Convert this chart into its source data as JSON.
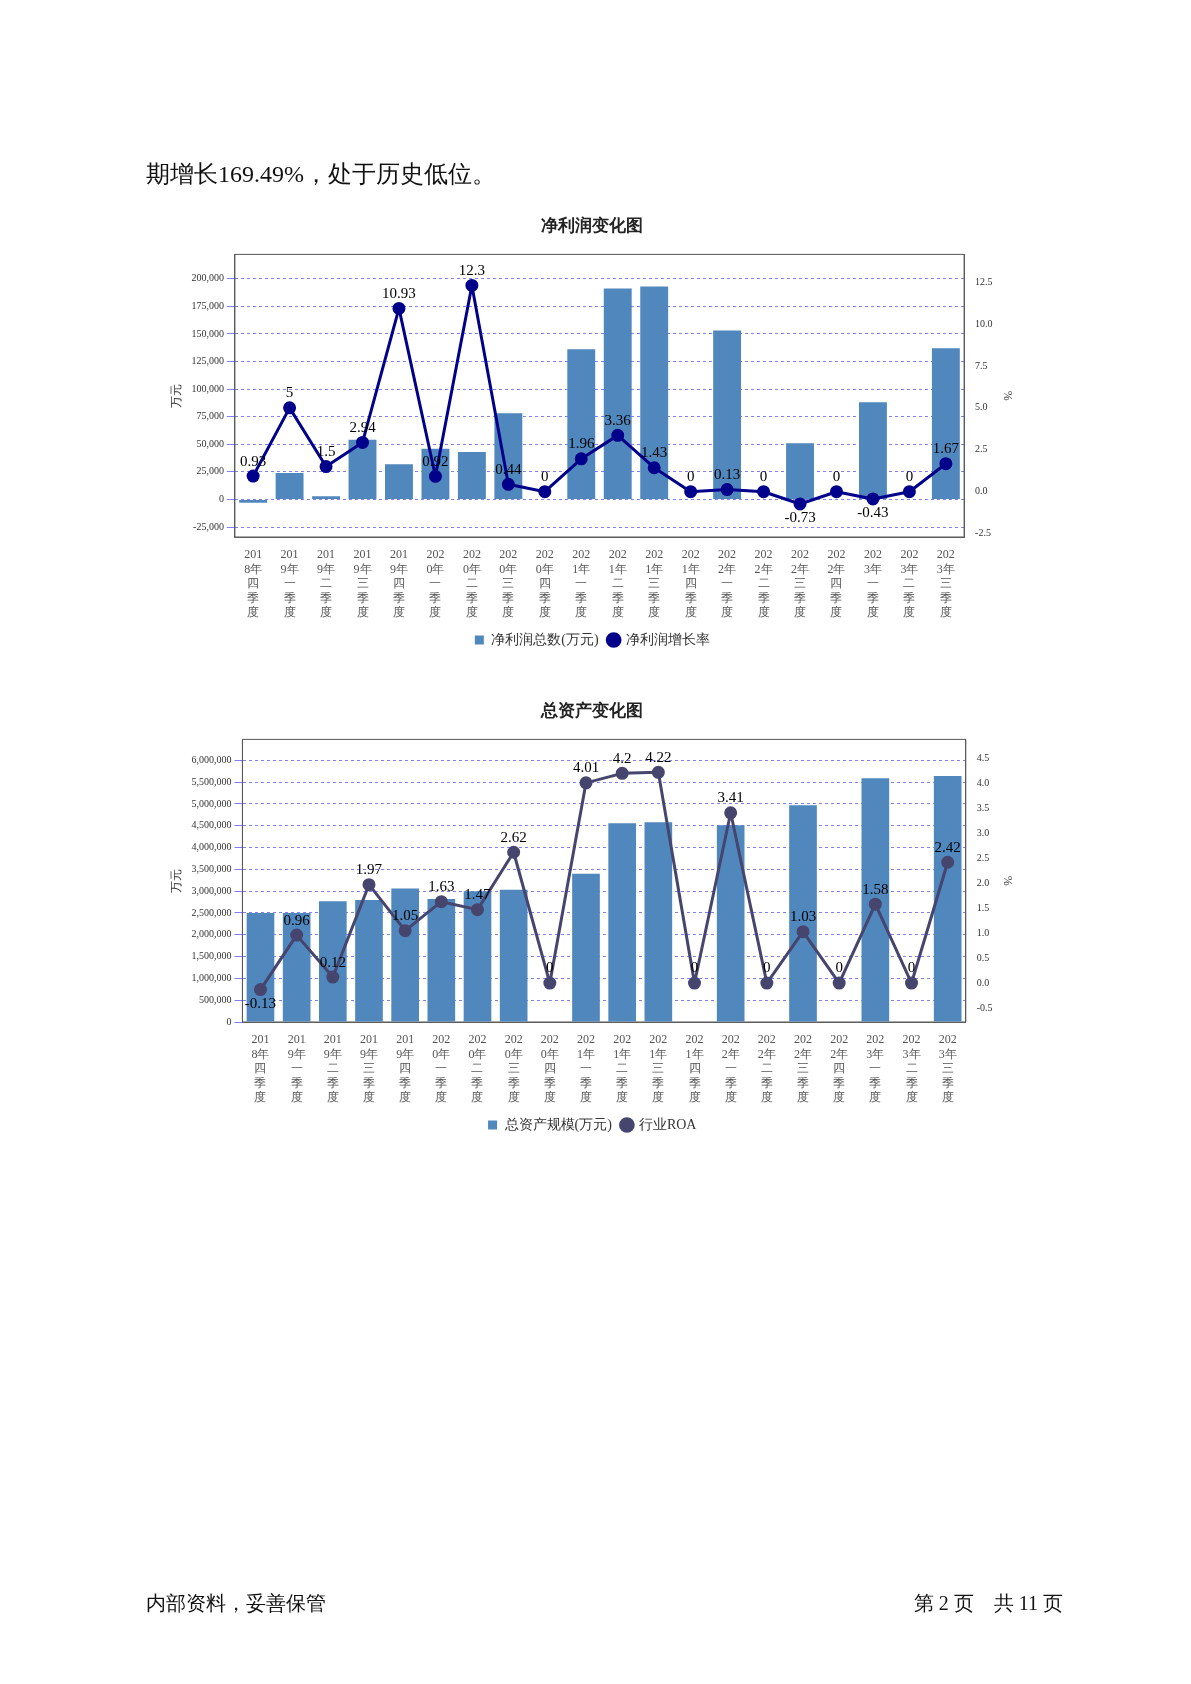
{
  "chart_data": [
    {
      "type": "bar",
      "title": "净利润变化图",
      "ylabel": "万元",
      "y2label": "%",
      "annotations": [
        "期增长169.49%，处于历史低位。"
      ],
      "categories": [
        "2018年四季度",
        "2019年一季度",
        "2019年二季度",
        "2019年三季度",
        "2019年四季度",
        "2020年一季度",
        "2020年二季度",
        "2020年三季度",
        "2020年四季度",
        "2021年一季度",
        "2021年二季度",
        "2021年三季度",
        "2021年四季度",
        "2022年一季度",
        "2022年二季度",
        "2022年三季度",
        "2022年四季度",
        "2023年一季度",
        "2023年二季度",
        "2023年三季度"
      ],
      "series": [
        {
          "name": "净利润总数(万元)",
          "type": "bar",
          "color": "#5087bd",
          "values": [
            -3000,
            24000,
            3000,
            54000,
            32000,
            46000,
            43000,
            78000,
            null,
            136000,
            191000,
            193000,
            null,
            153000,
            null,
            51000,
            null,
            88000,
            null,
            137000
          ]
        },
        {
          "name": "净利润增长率",
          "type": "line",
          "axis": "y2",
          "color": "#00008b",
          "marker": "circle",
          "values": [
            0.93,
            5,
            1.5,
            2.94,
            10.93,
            0.92,
            12.3,
            0.44,
            0,
            1.96,
            3.36,
            1.43,
            0,
            0.13,
            0,
            -0.73,
            0,
            -0.43,
            0,
            1.67
          ],
          "value_labels": [
            "0.93",
            "5",
            "1.5",
            "2.94",
            "10.93",
            "0.92",
            "12.3",
            "0.44",
            "0",
            "1.96",
            "3.36",
            "1.43",
            "0",
            "0.13",
            "0",
            "-0.73",
            "0",
            "-0.43",
            "0",
            "1.67"
          ]
        }
      ],
      "ylim": [
        -34000,
        222000
      ],
      "yticks": [
        {
          "value": -25000,
          "label": "-25,000"
        },
        {
          "value": 0,
          "label": "0"
        },
        {
          "value": 25000,
          "label": "25,000"
        },
        {
          "value": 50000,
          "label": "50,000"
        },
        {
          "value": 75000,
          "label": "75,000"
        },
        {
          "value": 100000,
          "label": "100,000"
        },
        {
          "value": 125000,
          "label": "125,000"
        },
        {
          "value": 150000,
          "label": "150,000"
        },
        {
          "value": 175000,
          "label": "175,000"
        },
        {
          "value": 200000,
          "label": "200,000"
        }
      ],
      "y2lim": [
        -2.7,
        14.15
      ],
      "y2ticks": [
        {
          "value": -2.5,
          "label": "-2.5"
        },
        {
          "value": 0,
          "label": "0.0"
        },
        {
          "value": 2.5,
          "label": "2.5"
        },
        {
          "value": 5,
          "label": "5.0"
        },
        {
          "value": 7.5,
          "label": "7.5"
        },
        {
          "value": 10,
          "label": "10.0"
        },
        {
          "value": 12.5,
          "label": "12.5"
        }
      ],
      "grid": "y",
      "legend": "bottom"
    },
    {
      "type": "bar",
      "title": "总资产变化图",
      "ylabel": "万元",
      "y2label": "%",
      "annotations": [
        "内部资料，妥善保管",
        "第 2 页　共 11 页"
      ],
      "categories": [
        "2018年四季度",
        "2019年一季度",
        "2019年二季度",
        "2019年三季度",
        "2019年四季度",
        "2020年一季度",
        "2020年二季度",
        "2020年三季度",
        "2020年四季度",
        "2021年一季度",
        "2021年二季度",
        "2021年三季度",
        "2021年四季度",
        "2022年一季度",
        "2022年二季度",
        "2022年三季度",
        "2022年四季度",
        "2023年一季度",
        "2023年二季度",
        "2023年三季度"
      ],
      "series": [
        {
          "name": "总资产规模(万元)",
          "type": "bar",
          "color": "#5087bd",
          "values": [
            2500000,
            2500000,
            2770000,
            2800000,
            3060000,
            2820000,
            3000000,
            3030000,
            null,
            3400000,
            4560000,
            4580000,
            null,
            4510000,
            null,
            4970000,
            null,
            5590000,
            null,
            5640000
          ]
        },
        {
          "name": "行业ROA",
          "type": "line",
          "axis": "y2",
          "color": "#46456e",
          "marker": "circle",
          "values": [
            -0.13,
            0.96,
            0.12,
            1.97,
            1.05,
            1.63,
            1.47,
            2.62,
            0,
            4.01,
            4.2,
            4.22,
            0,
            3.41,
            0,
            1.03,
            0,
            1.58,
            0,
            2.42
          ],
          "value_labels": [
            "-0.13",
            "0.96",
            "0.12",
            "1.97",
            "1.05",
            "1.63",
            "1.47",
            "2.62",
            "0",
            "4.01",
            "4.2",
            "4.22",
            "0",
            "3.41",
            "0",
            "1.03",
            "0",
            "1.58",
            "0",
            "2.42"
          ]
        }
      ],
      "ylim": [
        0,
        6480000
      ],
      "yticks": [
        {
          "value": 0,
          "label": "0"
        },
        {
          "value": 500000,
          "label": "500,000"
        },
        {
          "value": 1000000,
          "label": "1,000,000"
        },
        {
          "value": 1500000,
          "label": "1,500,000"
        },
        {
          "value": 2000000,
          "label": "2,000,000"
        },
        {
          "value": 2500000,
          "label": "2,500,000"
        },
        {
          "value": 3000000,
          "label": "3,000,000"
        },
        {
          "value": 3500000,
          "label": "3,500,000"
        },
        {
          "value": 4000000,
          "label": "4,000,000"
        },
        {
          "value": 4500000,
          "label": "4,500,000"
        },
        {
          "value": 5000000,
          "label": "5,000,000"
        },
        {
          "value": 5500000,
          "label": "5,500,000"
        },
        {
          "value": 6000000,
          "label": "6,000,000"
        }
      ],
      "y2lim": [
        -0.78,
        4.88
      ],
      "y2ticks": [
        {
          "value": -0.5,
          "label": "-0.5"
        },
        {
          "value": 0,
          "label": "0.0"
        },
        {
          "value": 0.5,
          "label": "0.5"
        },
        {
          "value": 1,
          "label": "1.0"
        },
        {
          "value": 1.5,
          "label": "1.5"
        },
        {
          "value": 2,
          "label": "2.0"
        },
        {
          "value": 2.5,
          "label": "2.5"
        },
        {
          "value": 3,
          "label": "3.0"
        },
        {
          "value": 3.5,
          "label": "3.5"
        },
        {
          "value": 4,
          "label": "4.0"
        },
        {
          "value": 4.5,
          "label": "4.5"
        }
      ],
      "grid": "y",
      "legend": "bottom"
    }
  ]
}
